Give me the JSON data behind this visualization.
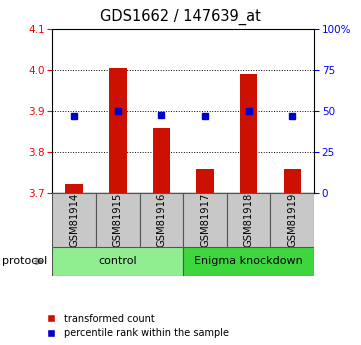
{
  "title": "GDS1662 / 147639_at",
  "samples": [
    "GSM81914",
    "GSM81915",
    "GSM81916",
    "GSM81917",
    "GSM81918",
    "GSM81919"
  ],
  "red_values": [
    3.722,
    4.005,
    3.858,
    3.758,
    3.992,
    3.758
  ],
  "blue_percentiles": [
    47,
    50,
    48,
    47,
    50,
    47
  ],
  "ylim_left": [
    3.7,
    4.1
  ],
  "ylim_right": [
    0,
    100
  ],
  "yticks_left": [
    3.7,
    3.8,
    3.9,
    4.0,
    4.1
  ],
  "yticks_right": [
    0,
    25,
    50,
    75,
    100
  ],
  "ytick_labels_right": [
    "0",
    "25",
    "50",
    "75",
    "100%"
  ],
  "grid_values": [
    3.8,
    3.9,
    4.0
  ],
  "groups": [
    {
      "label": "control",
      "indices": [
        0,
        1,
        2
      ],
      "color": "#90EE90"
    },
    {
      "label": "Enigma knockdown",
      "indices": [
        3,
        4,
        5
      ],
      "color": "#3DD63D"
    }
  ],
  "bar_color": "#CC1100",
  "dot_color": "#0000CC",
  "bar_width": 0.4,
  "label_box_color": "#C8C8C8",
  "protocol_text": "protocol"
}
